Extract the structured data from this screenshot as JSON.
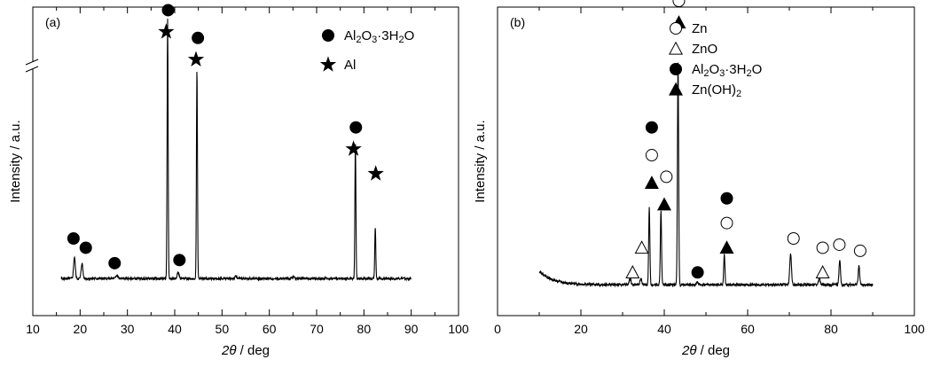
{
  "chart_data": [
    {
      "type": "line",
      "panel_label": "(a)",
      "xlabel_parts": {
        "theta": "2θ",
        "rest": "/ deg"
      },
      "ylabel": "Intensity / a.u.",
      "xlim": [
        10,
        100
      ],
      "ylim": [
        0,
        1
      ],
      "xticks": [
        10,
        20,
        30,
        40,
        50,
        60,
        70,
        80,
        90,
        100
      ],
      "axis_break": true,
      "baseline": 0.12,
      "x_range": [
        16,
        90
      ],
      "peaks": [
        {
          "x": 18.8,
          "h": 0.07,
          "w": 0.25
        },
        {
          "x": 20.4,
          "h": 0.05,
          "w": 0.25
        },
        {
          "x": 27.8,
          "h": 0.01,
          "w": 0.3
        },
        {
          "x": 38.5,
          "h": 0.84,
          "w": 0.15
        },
        {
          "x": 40.7,
          "h": 0.02,
          "w": 0.3
        },
        {
          "x": 44.7,
          "h": 0.68,
          "w": 0.15
        },
        {
          "x": 53.0,
          "h": 0.008,
          "w": 0.3
        },
        {
          "x": 65.1,
          "h": 0.006,
          "w": 0.3
        },
        {
          "x": 78.2,
          "h": 0.44,
          "w": 0.15
        },
        {
          "x": 82.4,
          "h": 0.17,
          "w": 0.15
        }
      ],
      "markers": [
        {
          "symbol": "circle",
          "x": 18.6,
          "y": 0.25
        },
        {
          "symbol": "circle",
          "x": 21.2,
          "y": 0.22
        },
        {
          "symbol": "circle",
          "x": 27.3,
          "y": 0.17
        },
        {
          "symbol": "star",
          "x": 38.2,
          "y": 0.92
        },
        {
          "symbol": "circle",
          "x": 38.6,
          "y": 0.99
        },
        {
          "symbol": "circle",
          "x": 41.0,
          "y": 0.18
        },
        {
          "symbol": "star",
          "x": 44.5,
          "y": 0.83
        },
        {
          "symbol": "circle",
          "x": 44.9,
          "y": 0.9
        },
        {
          "symbol": "star",
          "x": 77.8,
          "y": 0.54
        },
        {
          "symbol": "circle",
          "x": 78.3,
          "y": 0.61
        },
        {
          "symbol": "star",
          "x": 82.5,
          "y": 0.46
        }
      ],
      "legend": [
        {
          "symbol": "circle",
          "label_html": "Al<tspan baseline-shift=\"-30%\" font-size=\"11\">2</tspan>O<tspan baseline-shift=\"-30%\" font-size=\"11\">3</tspan>·3H<tspan baseline-shift=\"-30%\" font-size=\"11\">2</tspan>O",
          "label_text": "Al2O3·3H2O"
        },
        {
          "symbol": "star",
          "label_html": "Al",
          "label_text": "Al"
        }
      ]
    },
    {
      "type": "line",
      "panel_label": "(b)",
      "xlabel_parts": {
        "theta": "2θ",
        "rest": "/ deg"
      },
      "ylabel": "Intensity / a.u.",
      "xlim": [
        0,
        100
      ],
      "ylim": [
        0,
        1
      ],
      "xticks": [
        0,
        20,
        40,
        60,
        80,
        100
      ],
      "axis_break": false,
      "baseline": 0.1,
      "baseline_rise_start": 10,
      "x_range": [
        10,
        90
      ],
      "peaks": [
        {
          "x": 31.8,
          "h": 0.02,
          "w": 0.3
        },
        {
          "x": 34.4,
          "h": 0.02,
          "w": 0.3
        },
        {
          "x": 36.4,
          "h": 0.25,
          "w": 0.2
        },
        {
          "x": 39.2,
          "h": 0.24,
          "w": 0.2
        },
        {
          "x": 43.3,
          "h": 0.72,
          "w": 0.2
        },
        {
          "x": 47.9,
          "h": 0.01,
          "w": 0.3
        },
        {
          "x": 54.4,
          "h": 0.1,
          "w": 0.2
        },
        {
          "x": 70.3,
          "h": 0.1,
          "w": 0.3
        },
        {
          "x": 77.2,
          "h": 0.02,
          "w": 0.3
        },
        {
          "x": 82.1,
          "h": 0.08,
          "w": 0.25
        },
        {
          "x": 86.7,
          "h": 0.06,
          "w": 0.25
        }
      ],
      "markers": [
        {
          "symbol": "open-triangle",
          "x": 32.4,
          "y": 0.14
        },
        {
          "symbol": "open-triangle",
          "x": 34.6,
          "y": 0.22
        },
        {
          "symbol": "filled-triangle",
          "x": 37.0,
          "y": 0.43
        },
        {
          "symbol": "open-circle",
          "x": 37.0,
          "y": 0.52
        },
        {
          "symbol": "filled-circle",
          "x": 37.0,
          "y": 0.61
        },
        {
          "symbol": "filled-triangle",
          "x": 40.0,
          "y": 0.36
        },
        {
          "symbol": "open-circle",
          "x": 40.5,
          "y": 0.45
        },
        {
          "symbol": "filled-triangle",
          "x": 43.5,
          "y": 0.95
        },
        {
          "symbol": "open-circle",
          "x": 43.5,
          "y": 1.02
        },
        {
          "symbol": "filled-circle",
          "x": 48.0,
          "y": 0.14
        },
        {
          "symbol": "filled-triangle",
          "x": 55.0,
          "y": 0.22
        },
        {
          "symbol": "open-circle",
          "x": 55.0,
          "y": 0.3
        },
        {
          "symbol": "filled-circle",
          "x": 55.0,
          "y": 0.38
        },
        {
          "symbol": "open-circle",
          "x": 71.0,
          "y": 0.25
        },
        {
          "symbol": "open-triangle",
          "x": 78.0,
          "y": 0.14
        },
        {
          "symbol": "open-circle",
          "x": 78.0,
          "y": 0.22
        },
        {
          "symbol": "open-circle",
          "x": 82.0,
          "y": 0.23
        },
        {
          "symbol": "open-circle",
          "x": 87.0,
          "y": 0.21
        }
      ],
      "legend": [
        {
          "symbol": "open-circle",
          "label_html": "Zn",
          "label_text": "Zn"
        },
        {
          "symbol": "open-triangle",
          "label_html": "ZnO",
          "label_text": "ZnO"
        },
        {
          "symbol": "filled-circle",
          "label_html": "Al<tspan baseline-shift=\"-30%\" font-size=\"11\">2</tspan>O<tspan baseline-shift=\"-30%\" font-size=\"11\">3</tspan>·3H<tspan baseline-shift=\"-30%\" font-size=\"11\">2</tspan>O",
          "label_text": "Al2O3·3H2O"
        },
        {
          "symbol": "filled-triangle",
          "label_html": "Zn(OH)<tspan baseline-shift=\"-30%\" font-size=\"11\">2</tspan>",
          "label_text": "Zn(OH)2"
        }
      ]
    }
  ]
}
